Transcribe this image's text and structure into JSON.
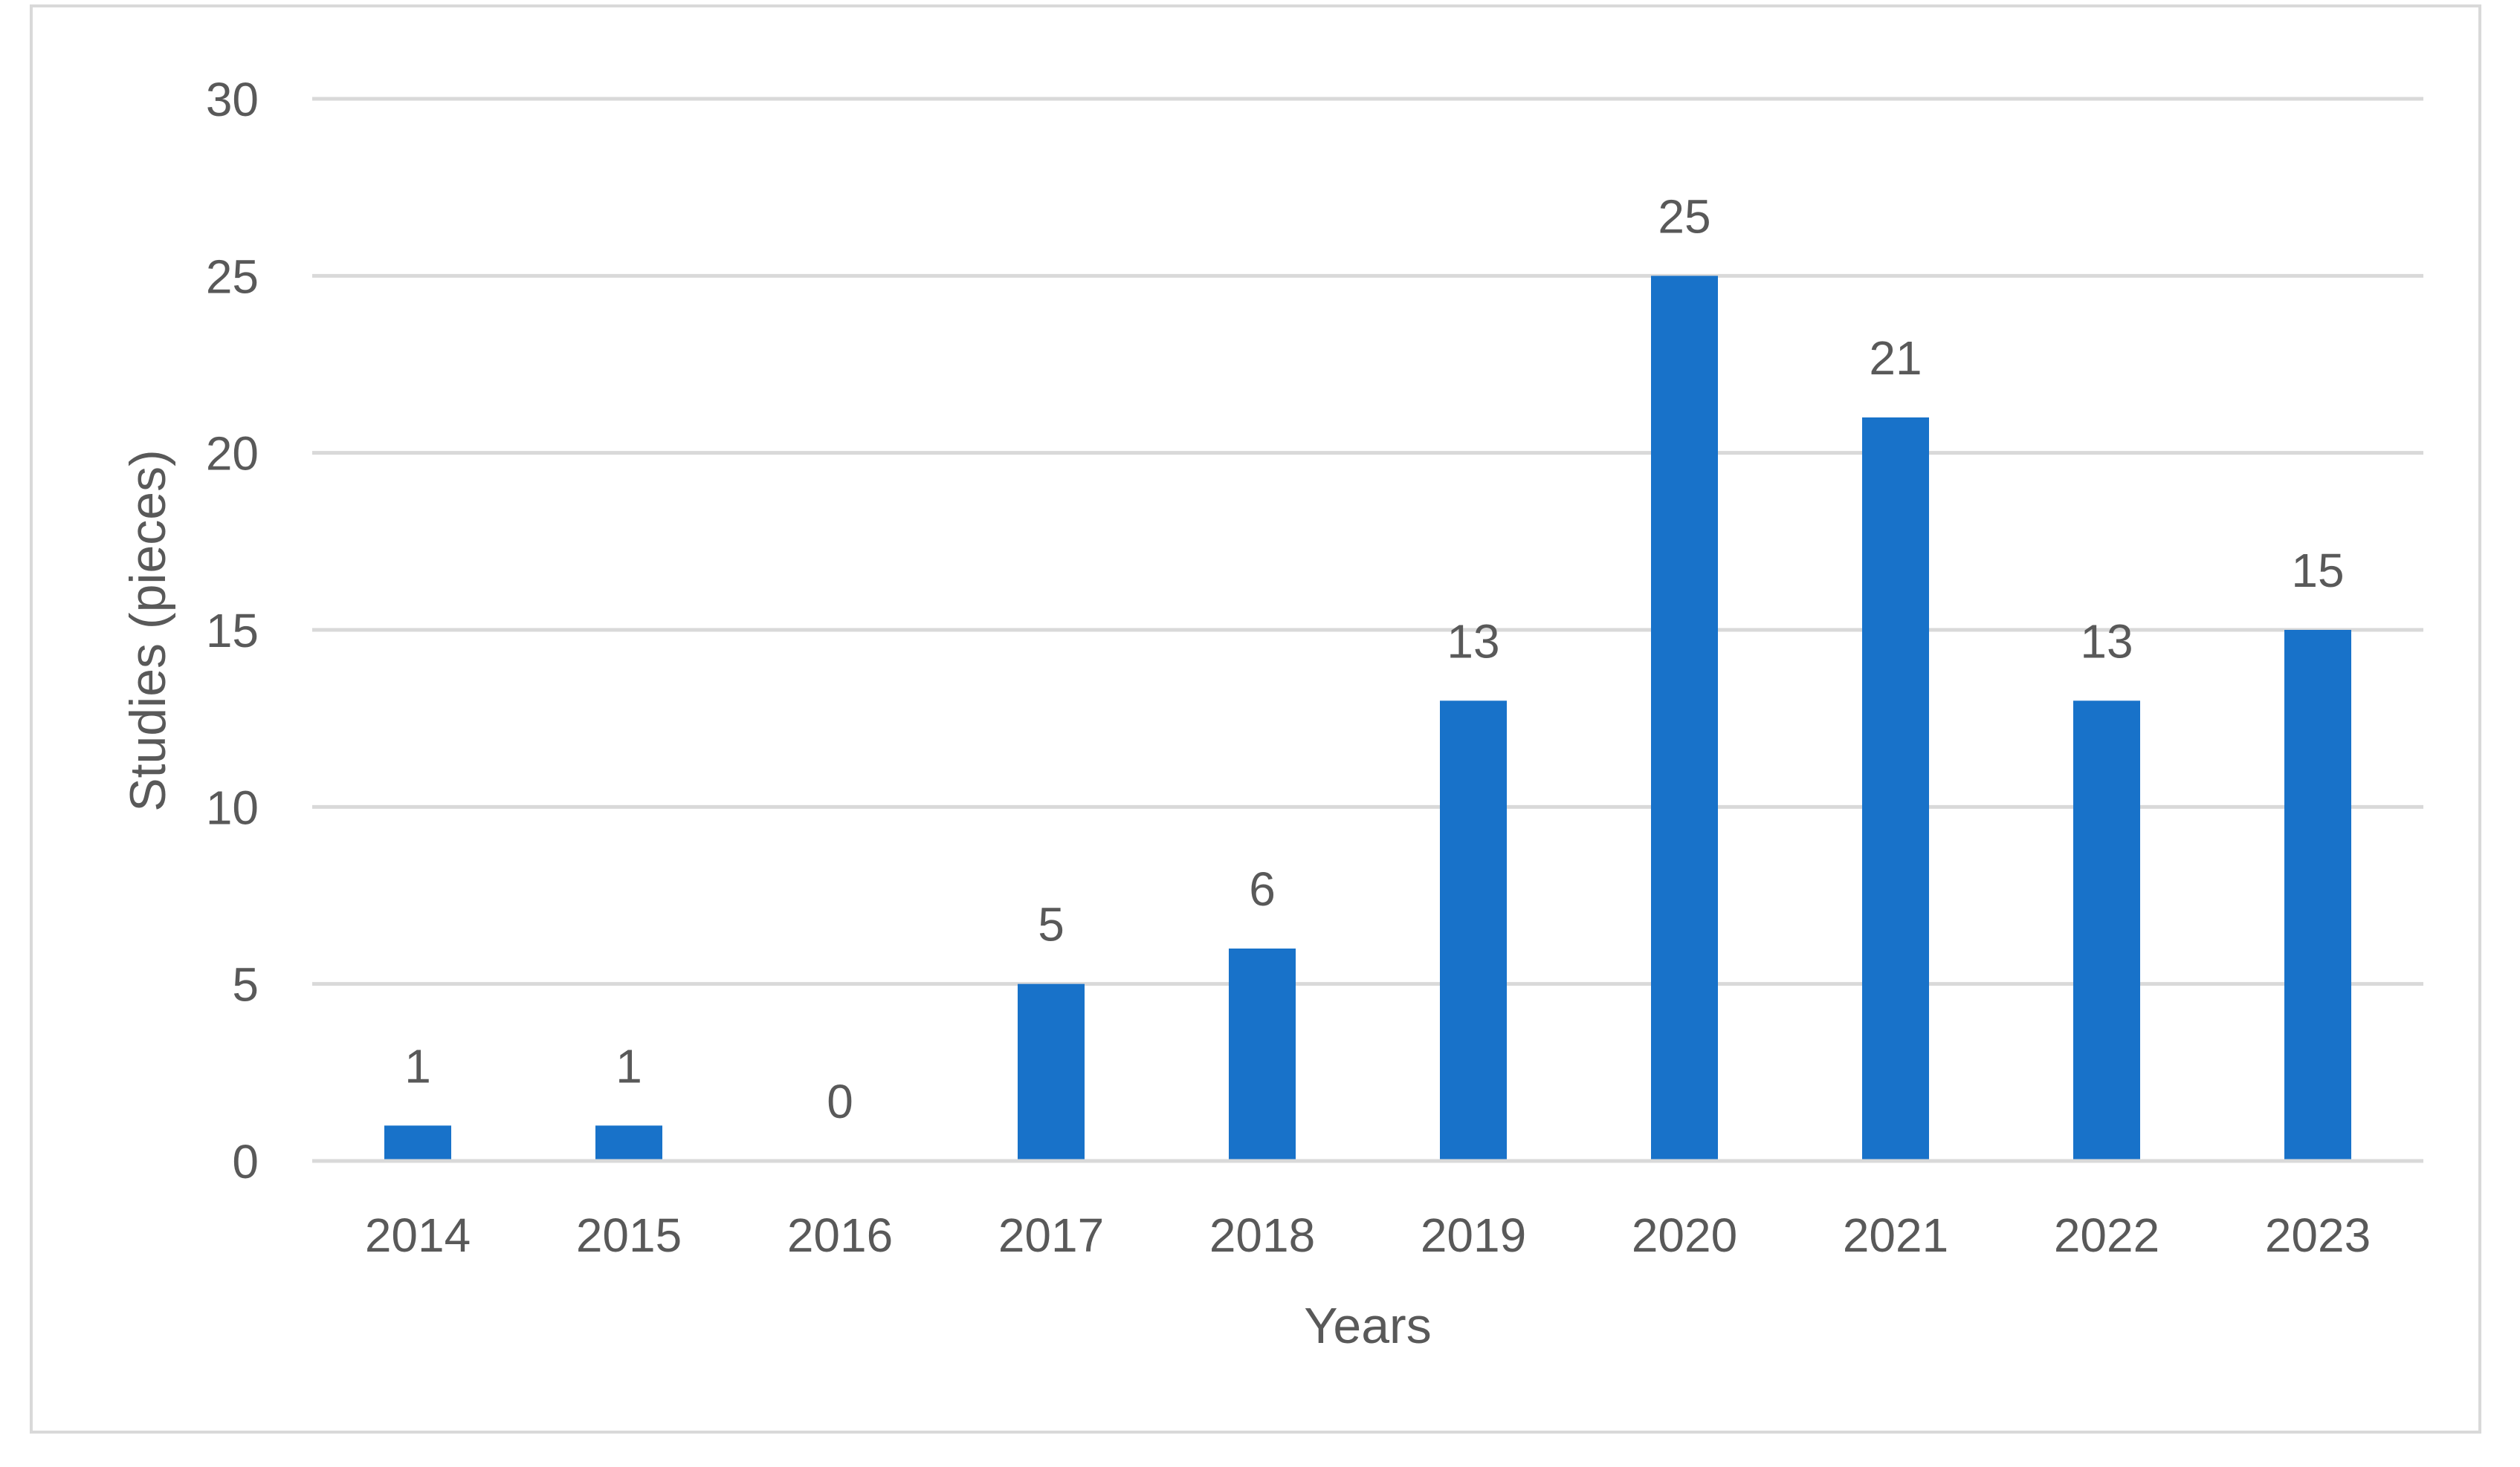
{
  "chart_data": {
    "type": "bar",
    "title": "",
    "xlabel": "Years",
    "ylabel": "Studies (pieces)",
    "categories": [
      "2014",
      "2015",
      "2016",
      "2017",
      "2018",
      "2019",
      "2020",
      "2021",
      "2022",
      "2023"
    ],
    "values": [
      1,
      1,
      0,
      5,
      6,
      13,
      25,
      21,
      13,
      15
    ],
    "data_labels": [
      "1",
      "1",
      "0",
      "5",
      "6",
      "13",
      "25",
      "21",
      "13",
      "15"
    ],
    "ylim": [
      0,
      30
    ],
    "yticks": [
      "0",
      "5",
      "10",
      "15",
      "20",
      "25",
      "30"
    ],
    "grid": true,
    "legend": "none",
    "colors": {
      "bar": "#1872c9",
      "grid": "#d9d9d9",
      "text": "#595959",
      "border": "#d9d9d9"
    }
  }
}
